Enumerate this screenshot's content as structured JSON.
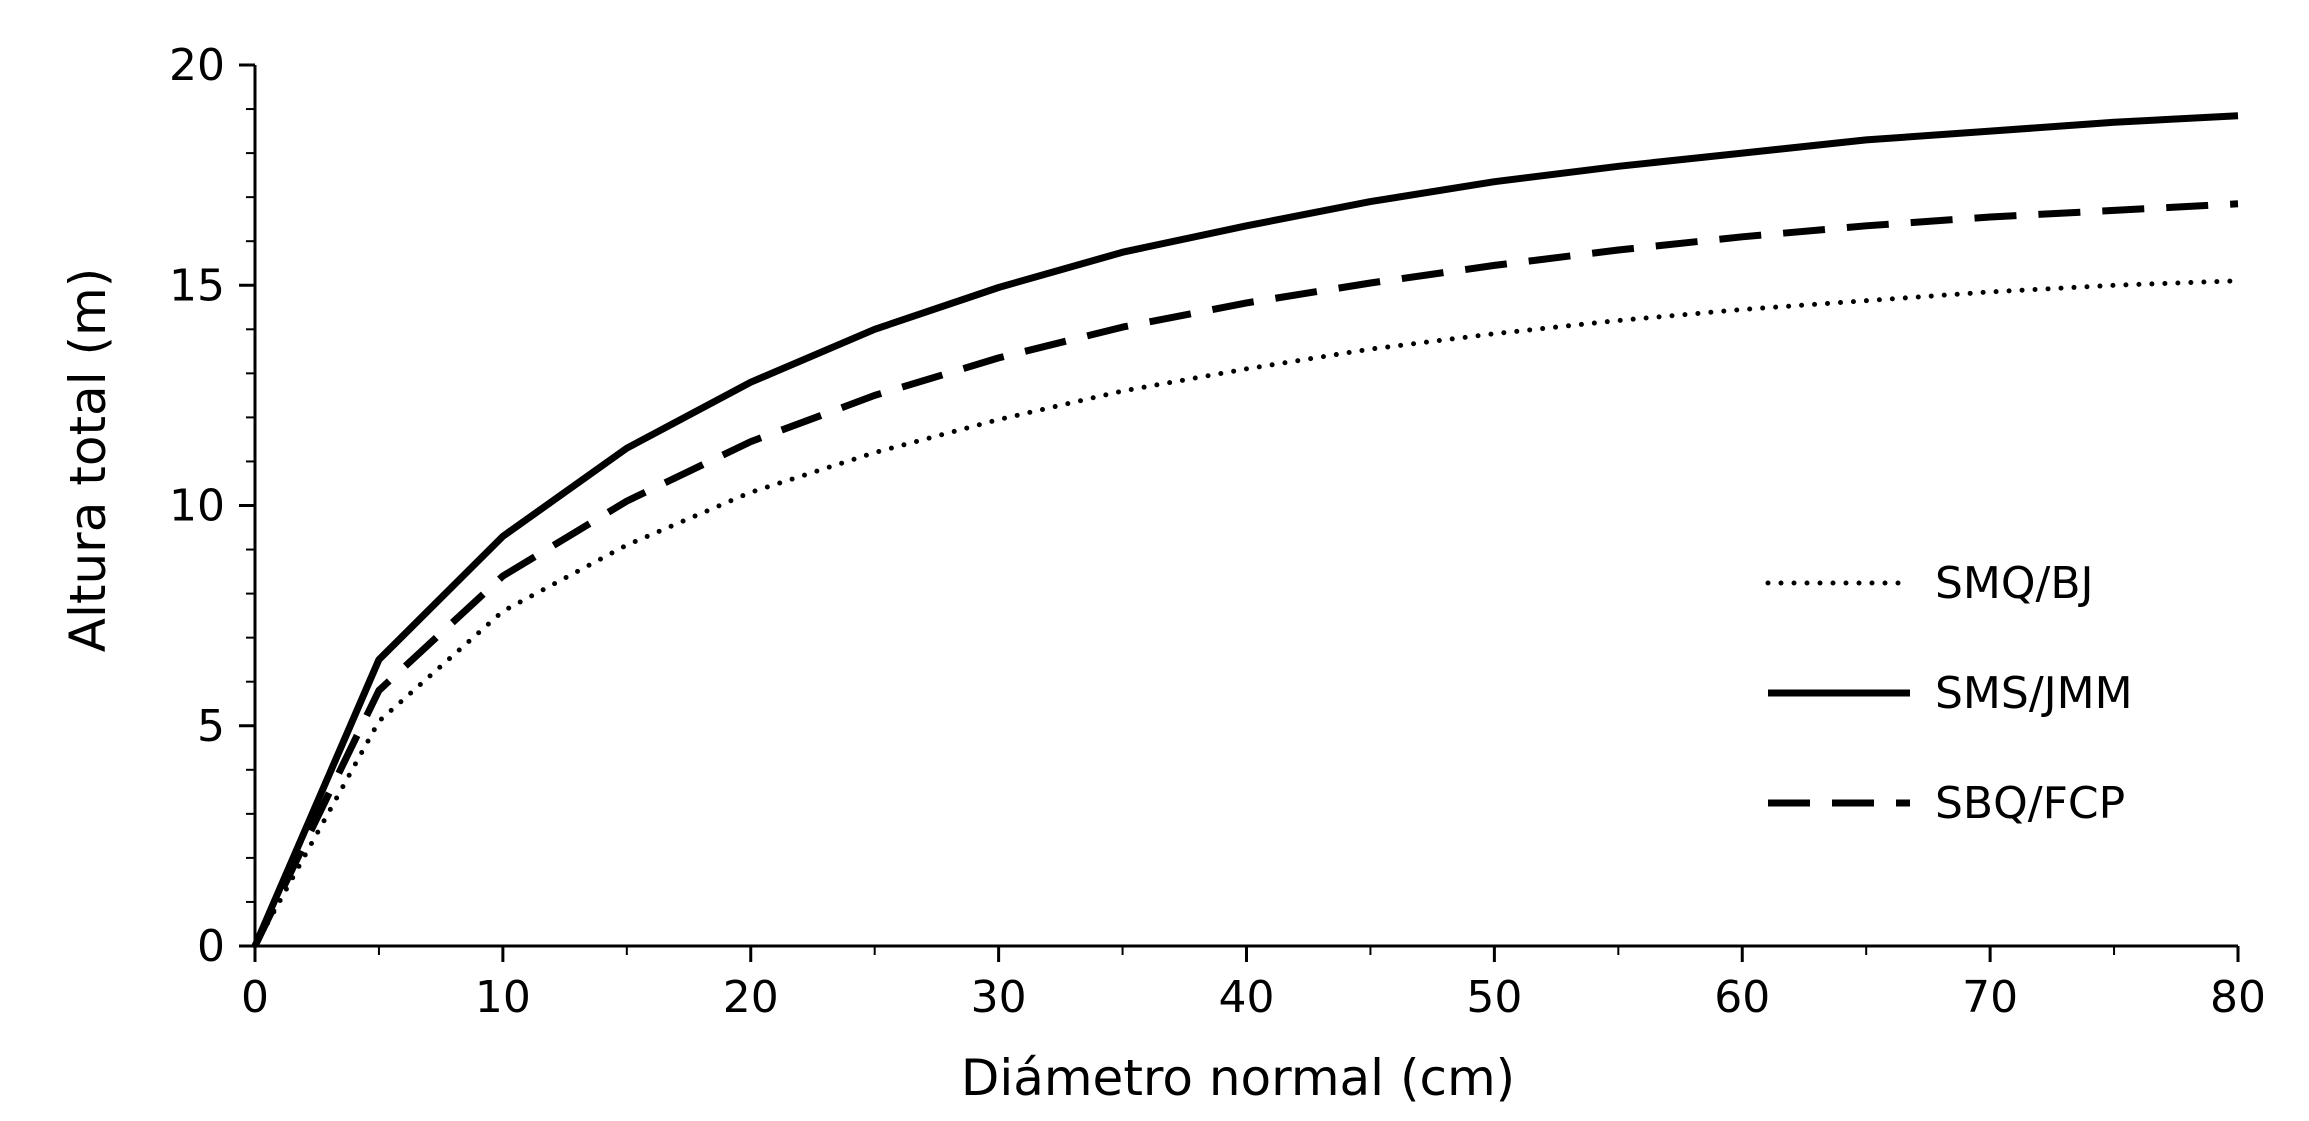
{
  "chart_data": {
    "type": "line",
    "xlabel": "Diámetro normal (cm)",
    "ylabel": "Altura total (m)",
    "xlim": [
      0,
      80
    ],
    "ylim": [
      0,
      20
    ],
    "x_ticks": [
      "0",
      "10",
      "20",
      "30",
      "40",
      "50",
      "60",
      "70",
      "80"
    ],
    "y_ticks": [
      "0",
      "5",
      "10",
      "15",
      "20"
    ],
    "grid": false,
    "legend_position": "right",
    "x": [
      0,
      5,
      10,
      15,
      20,
      25,
      30,
      35,
      40,
      45,
      50,
      55,
      60,
      65,
      70,
      75,
      80
    ],
    "series": [
      {
        "name": "SMQ/BJ",
        "style": "dotted",
        "values": [
          0,
          5.1,
          7.6,
          9.1,
          10.3,
          11.2,
          11.95,
          12.6,
          13.1,
          13.55,
          13.9,
          14.2,
          14.45,
          14.65,
          14.85,
          15.0,
          15.1
        ]
      },
      {
        "name": "SMS/JMM",
        "style": "solid",
        "values": [
          0,
          6.5,
          9.3,
          11.3,
          12.8,
          14.0,
          14.95,
          15.75,
          16.35,
          16.9,
          17.35,
          17.7,
          18.0,
          18.3,
          18.5,
          18.7,
          18.85
        ]
      },
      {
        "name": "SBQ/FCP",
        "style": "dashed",
        "values": [
          0,
          5.8,
          8.4,
          10.1,
          11.45,
          12.5,
          13.35,
          14.05,
          14.6,
          15.05,
          15.45,
          15.8,
          16.1,
          16.35,
          16.55,
          16.7,
          16.85
        ]
      }
    ],
    "colors": {
      "line": "#000000",
      "background": "#ffffff"
    }
  }
}
